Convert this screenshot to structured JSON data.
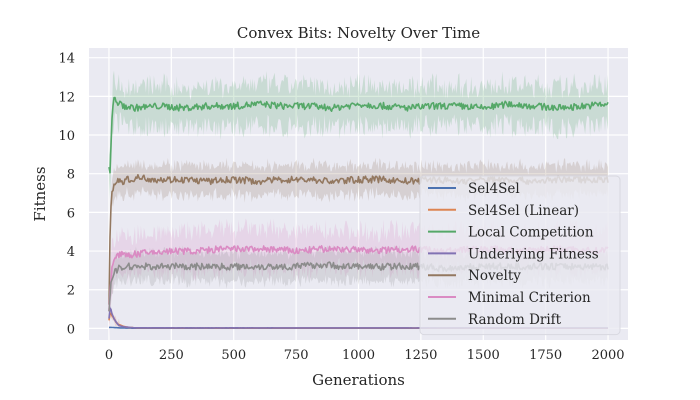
{
  "chart_data": {
    "type": "line",
    "title": "Convex Bits: Novelty Over Time",
    "xlabel": "Generations",
    "ylabel": "Fitness",
    "xlim": [
      -80,
      2080
    ],
    "ylim": [
      -0.6,
      14.5
    ],
    "xticks": [
      0,
      250,
      500,
      750,
      1000,
      1250,
      1500,
      1750,
      2000
    ],
    "yticks": [
      0,
      2,
      4,
      6,
      8,
      10,
      12,
      14
    ],
    "grid": true,
    "legend_position": "lower-right",
    "series": [
      {
        "name": "Sel4Sel",
        "color": "#4c72b0",
        "x": [
          0,
          10,
          20,
          40,
          60,
          100,
          150,
          2000
        ],
        "y": [
          0.05,
          0.05,
          0.04,
          0.03,
          0.02,
          0.01,
          0.01,
          0.01
        ],
        "band": [
          0.01,
          0.05
        ]
      },
      {
        "name": "Sel4Sel (Linear)",
        "color": "#dd8452",
        "x": [
          0,
          5,
          10,
          20,
          30,
          40,
          60,
          80,
          120,
          2000
        ],
        "y": [
          0.4,
          0.9,
          0.7,
          0.5,
          0.3,
          0.2,
          0.1,
          0.05,
          0.02,
          0.01
        ],
        "band": [
          0.05,
          0.3
        ]
      },
      {
        "name": "Local Competition",
        "color": "#55a868",
        "x": [
          0,
          5,
          10,
          15,
          20,
          25,
          40,
          60,
          100,
          200,
          300,
          400,
          500,
          600,
          700,
          800,
          900,
          1000,
          1100,
          1200,
          1300,
          1400,
          1500,
          1600,
          1700,
          1800,
          1900,
          2000
        ],
        "y": [
          8.3,
          8.0,
          10.5,
          11.4,
          11.8,
          11.9,
          11.6,
          11.5,
          11.4,
          11.5,
          11.4,
          11.5,
          11.5,
          11.6,
          11.5,
          11.5,
          11.4,
          11.6,
          11.5,
          11.4,
          11.5,
          11.5,
          11.4,
          11.6,
          11.5,
          11.4,
          11.5,
          11.6
        ],
        "band": [
          0.5,
          1.6
        ]
      },
      {
        "name": "Underlying Fitness",
        "color": "#8172b3",
        "x": [
          0,
          5,
          10,
          20,
          30,
          40,
          60,
          100,
          2000
        ],
        "y": [
          0.5,
          1.2,
          0.8,
          0.5,
          0.3,
          0.15,
          0.08,
          0.03,
          0.02
        ],
        "band": [
          0.05,
          0.2
        ]
      },
      {
        "name": "Novelty",
        "color": "#937860",
        "x": [
          0,
          5,
          10,
          15,
          20,
          30,
          50,
          80,
          120,
          200,
          300,
          400,
          500,
          600,
          700,
          800,
          900,
          1000,
          1100,
          1200,
          1300,
          1400,
          1500,
          1600,
          1700,
          1800,
          1900,
          2000
        ],
        "y": [
          1.2,
          5.5,
          6.8,
          7.2,
          7.5,
          7.6,
          7.6,
          7.7,
          7.8,
          7.7,
          7.7,
          7.6,
          7.7,
          7.6,
          7.7,
          7.7,
          7.6,
          7.7,
          7.7,
          7.6,
          7.7,
          7.6,
          7.7,
          7.7,
          7.6,
          7.7,
          7.7,
          7.7
        ],
        "band": [
          0.5,
          1.0
        ]
      },
      {
        "name": "Minimal Criterion",
        "color": "#da8bc3",
        "x": [
          0,
          5,
          10,
          20,
          40,
          80,
          150,
          250,
          350,
          450,
          550,
          650,
          750,
          850,
          950,
          1050,
          1150,
          1250,
          1350,
          1450,
          1550,
          1650,
          1750,
          1850,
          1950,
          2000
        ],
        "y": [
          1.0,
          2.0,
          3.0,
          3.6,
          3.8,
          3.8,
          3.9,
          4.0,
          4.0,
          4.1,
          4.1,
          4.1,
          4.0,
          4.1,
          4.1,
          4.0,
          4.1,
          4.1,
          4.0,
          4.1,
          4.1,
          4.0,
          4.1,
          4.1,
          4.0,
          4.1
        ],
        "band": [
          0.5,
          1.5
        ]
      },
      {
        "name": "Random Drift",
        "color": "#8c8c8c",
        "x": [
          0,
          5,
          10,
          20,
          40,
          80,
          150,
          250,
          350,
          450,
          550,
          650,
          750,
          850,
          950,
          1050,
          1150,
          1250,
          1350,
          1450,
          1550,
          1650,
          1750,
          1850,
          1950,
          2000
        ],
        "y": [
          1.0,
          1.8,
          2.5,
          2.9,
          3.1,
          3.2,
          3.2,
          3.2,
          3.2,
          3.2,
          3.2,
          3.2,
          3.2,
          3.3,
          3.2,
          3.2,
          3.2,
          3.2,
          3.1,
          3.2,
          3.2,
          3.2,
          3.2,
          3.2,
          3.2,
          3.2
        ],
        "band": [
          0.5,
          1.0
        ]
      }
    ]
  }
}
